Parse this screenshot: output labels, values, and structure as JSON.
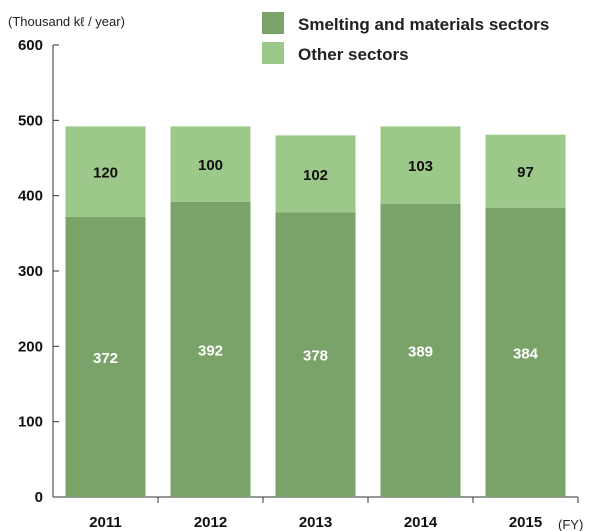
{
  "chart_data": {
    "type": "bar",
    "stacked": true,
    "unit_label": "(Thousand kℓ / year)",
    "x_unit": "(FY)",
    "categories": [
      "2011",
      "2012",
      "2013",
      "2014",
      "2015"
    ],
    "series": [
      {
        "name": "Smelting and materials sectors",
        "values": [
          372,
          392,
          378,
          389,
          384
        ],
        "color": "#7aa36a"
      },
      {
        "name": "Other sectors",
        "values": [
          120,
          100,
          102,
          103,
          97
        ],
        "color": "#9cc88a"
      }
    ],
    "ylim": [
      0,
      600
    ],
    "yticks": [
      0,
      100,
      200,
      300,
      400,
      500,
      600
    ],
    "grid": false,
    "legend_position": "top-right"
  }
}
